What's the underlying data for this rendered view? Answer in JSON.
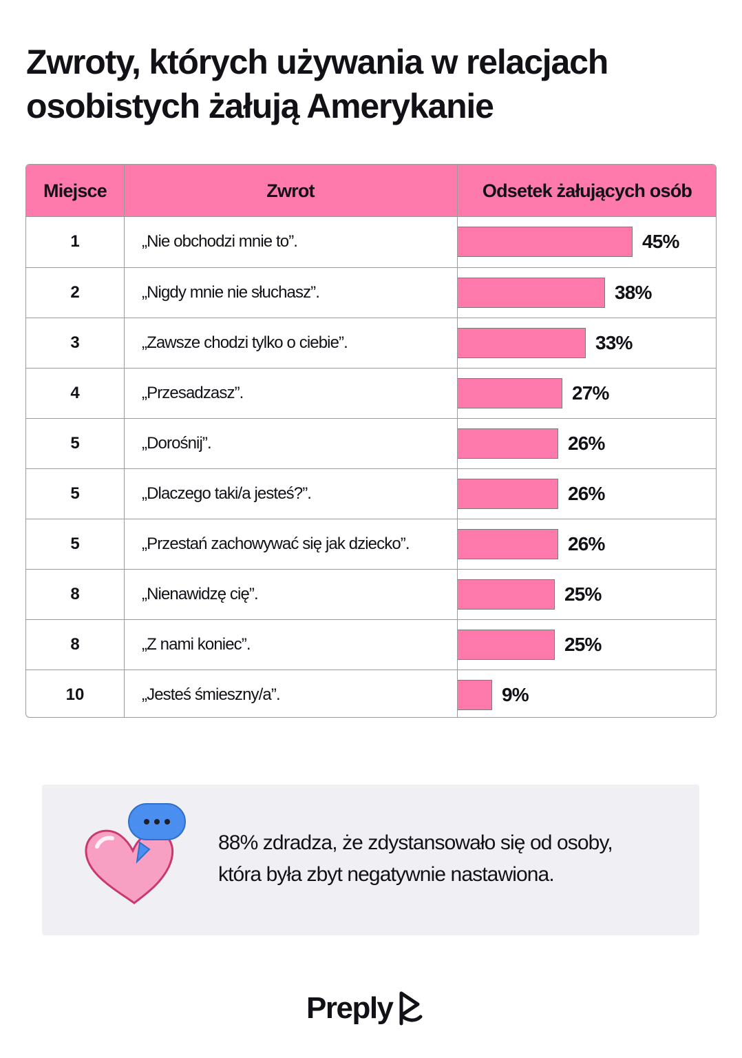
{
  "title": {
    "line1": "Zwroty, których używania w relacjach",
    "line2": "osobistych żałują Amerykanie"
  },
  "colors": {
    "accent_pink": "#ff7aac",
    "text": "#121117",
    "note_bg": "#f0f0f4",
    "bubble_blue": "#4a8ef0"
  },
  "table": {
    "headers": {
      "rank": "Miejsce",
      "phrase": "Zwrot",
      "percent": "Odsetek żałujących osób"
    }
  },
  "chart_data": {
    "type": "bar",
    "orientation": "horizontal",
    "title": "Zwroty, których używania w relacjach osobistych żałują Amerykanie",
    "xlabel": "Odsetek żałujących osób",
    "ylabel": "Zwrot",
    "unit": "%",
    "xlim": [
      0,
      45
    ],
    "rows": [
      {
        "rank": "1",
        "phrase": "„Nie obchodzi mnie to”.",
        "value": 45,
        "label": "45%"
      },
      {
        "rank": "2",
        "phrase": "„Nigdy mnie nie słuchasz”.",
        "value": 38,
        "label": "38%"
      },
      {
        "rank": "3",
        "phrase": "„Zawsze chodzi tylko o ciebie”.",
        "value": 33,
        "label": "33%"
      },
      {
        "rank": "4",
        "phrase": "„Przesadzasz”.",
        "value": 27,
        "label": "27%"
      },
      {
        "rank": "5",
        "phrase": "„Dorośnij”.",
        "value": 26,
        "label": "26%"
      },
      {
        "rank": "5",
        "phrase": "„Dlaczego taki/a jesteś?”.",
        "value": 26,
        "label": "26%"
      },
      {
        "rank": "5",
        "phrase": "„Przestań zachowywać się jak dziecko”.",
        "value": 26,
        "label": "26%"
      },
      {
        "rank": "8",
        "phrase": "„Nienawidzę cię”.",
        "value": 25,
        "label": "25%"
      },
      {
        "rank": "8",
        "phrase": "„Z nami koniec”.",
        "value": 25,
        "label": "25%"
      },
      {
        "rank": "10",
        "phrase": "„Jesteś śmieszny/a”.",
        "value": 9,
        "label": "9%"
      }
    ]
  },
  "note": {
    "icon": "heart-with-speech-bubble-icon",
    "line1": "88% zdradza, że zdystansowało się od osoby,",
    "line2": "która była zbyt negatywnie nastawiona."
  },
  "footer": {
    "logo_text": "Preply",
    "logo_icon": "preply-mark-icon"
  }
}
